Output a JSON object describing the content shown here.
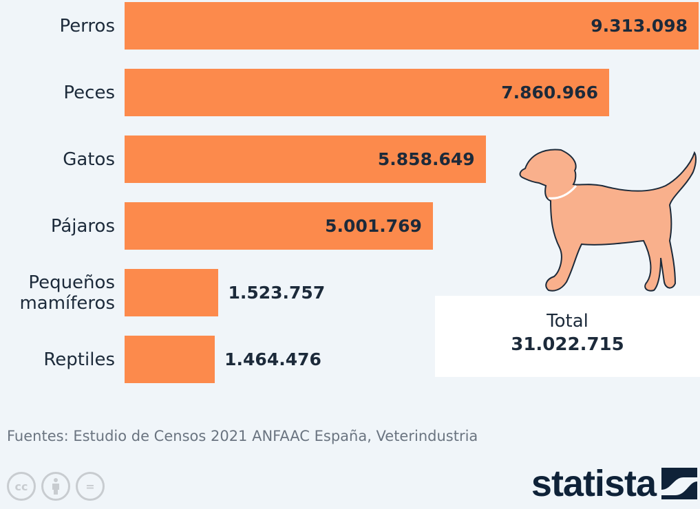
{
  "chart_data": {
    "type": "bar",
    "orientation": "horizontal",
    "categories": [
      "Perros",
      "Peces",
      "Gatos",
      "Pájaros",
      "Pequeños mamíferos",
      "Reptiles"
    ],
    "values": [
      9313098,
      7860966,
      5858649,
      5001769,
      1523757,
      1464476
    ],
    "value_labels": [
      "9.313.098",
      "7.860.966",
      "5.858.649",
      "5.001.769",
      "1.523.757",
      "1.464.476"
    ],
    "xlim": [
      0,
      9313098
    ],
    "grid": false,
    "bar_color": "#fc8a4c"
  },
  "total": {
    "label": "Total",
    "value": "31.022.715"
  },
  "source": "Fuentes: Estudio de Censos 2021 ANFAAC España, Veterindustria",
  "license_icons": [
    "cc-icon",
    "by-icon",
    "nd-icon"
  ],
  "license_glyphs": {
    "cc": "cc",
    "nd": "="
  },
  "logo": "statista"
}
